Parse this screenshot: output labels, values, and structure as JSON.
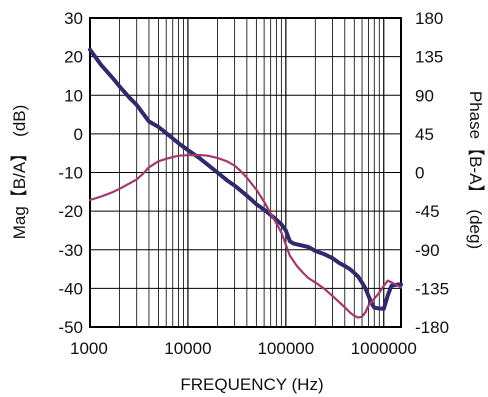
{
  "chart_data": {
    "type": "line",
    "x_scale": "log",
    "xlim": [
      1000,
      1500000
    ],
    "x_ticks": [
      1000,
      10000,
      100000,
      1000000
    ],
    "x_tick_labels": [
      "1000",
      "10000",
      "100000",
      "1000000"
    ],
    "xlabel": "FREQUENCY (Hz)",
    "left_axis": {
      "label_parts": [
        "Mag",
        "【B/A】",
        "(dB)"
      ],
      "ylim": [
        -50,
        30
      ],
      "ticks": [
        30,
        20,
        10,
        0,
        -10,
        -20,
        -30,
        -40,
        -50
      ],
      "tick_labels": [
        "30",
        "20",
        "10",
        "0",
        "-10",
        "-20",
        "-30",
        "-40",
        "-50"
      ]
    },
    "right_axis": {
      "label_parts": [
        "Phase",
        "【B-A】",
        "(deg)"
      ],
      "ylim": [
        -180,
        180
      ],
      "ticks": [
        180,
        135,
        90,
        45,
        0,
        -45,
        -90,
        -135,
        -180
      ],
      "tick_labels": [
        "180",
        "135",
        "90",
        "45",
        "0",
        "-45",
        "-90",
        "-135",
        "-180"
      ]
    },
    "grid": true,
    "series": [
      {
        "axis": "left",
        "color": "#2e2a6b",
        "x": [
          1000,
          1300,
          1700,
          2000,
          2500,
          3000,
          4000,
          5000,
          6000,
          7000,
          8000,
          10000,
          13000,
          16000,
          20000,
          25000,
          30000,
          40000,
          50000,
          60000,
          70000,
          80000,
          90000,
          100000,
          110000,
          120000,
          140000,
          170000,
          200000,
          250000,
          300000,
          350000,
          400000,
          450000,
          500000,
          550000,
          600000,
          650000,
          700000,
          750000,
          800000,
          900000,
          1000000,
          1100000,
          1200000,
          1400000,
          1500000
        ],
        "values": [
          21.8,
          17.8,
          14.5,
          12.3,
          9.5,
          7.5,
          3.2,
          1.8,
          0.2,
          -1.2,
          -2.4,
          -4.2,
          -6.2,
          -8.0,
          -10.0,
          -12.0,
          -13.4,
          -16.0,
          -18.2,
          -19.6,
          -21.0,
          -22.2,
          -23.4,
          -25.0,
          -27.8,
          -28.4,
          -28.8,
          -29.3,
          -30.3,
          -31.2,
          -32.2,
          -33.4,
          -34.2,
          -35.0,
          -36.0,
          -37.0,
          -38.5,
          -40.0,
          -42.0,
          -43.8,
          -45.0,
          -45.2,
          -45.3,
          -41.8,
          -39.3,
          -39.0,
          -39.0
        ]
      },
      {
        "axis": "right",
        "color": "#a3386d",
        "x": [
          1000,
          1300,
          1700,
          2000,
          2500,
          3000,
          3500,
          4000,
          5000,
          6000,
          7000,
          8000,
          10000,
          13000,
          16000,
          20000,
          25000,
          30000,
          35000,
          40000,
          50000,
          60000,
          70000,
          80000,
          90000,
          100000,
          110000,
          130000,
          150000,
          170000,
          200000,
          250000,
          300000,
          350000,
          400000,
          450000,
          500000,
          550000,
          600000,
          650000,
          700000,
          800000,
          900000,
          1000000,
          1100000,
          1200000,
          1400000,
          1500000
        ],
        "values": [
          -32,
          -28,
          -23,
          -19,
          -13,
          -8,
          -1,
          6,
          13,
          16,
          18,
          19.6,
          20.2,
          20.4,
          19.6,
          17,
          13,
          8,
          1,
          -6,
          -20,
          -34,
          -48,
          -59,
          -70,
          -84,
          -97,
          -109,
          -117,
          -123,
          -128,
          -136,
          -144,
          -151,
          -157,
          -163,
          -167,
          -169,
          -168,
          -163,
          -155,
          -147,
          -140,
          -132,
          -126,
          -128,
          -132,
          -134
        ]
      }
    ]
  }
}
